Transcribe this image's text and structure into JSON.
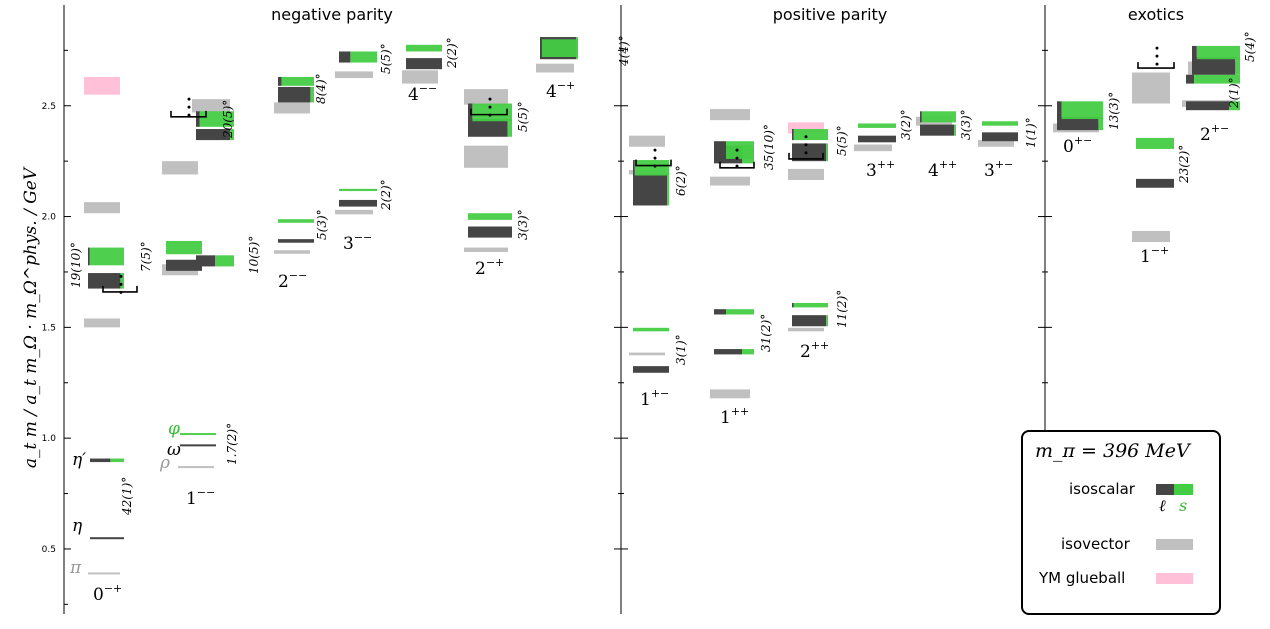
{
  "legend_title": "m_π = 396 MeV",
  "colors": {
    "light": "#454545",
    "strange": "#44cc44",
    "isovector": "#c0c0c0",
    "glueball": "#ffc0d8"
  },
  "legend": {
    "isoscalar": "isoscalar",
    "isovector": "isovector",
    "glueball": "YM glueball",
    "light_sym": "ℓ",
    "strange_sym": "s"
  },
  "chart_data": {
    "type": "spectrum",
    "ylabel": "a_t m / a_t m_Ω · m_Ω^phys. / GeV",
    "ylim": [
      0.22,
      2.88
    ],
    "yticks": [
      0.5,
      1.0,
      1.5,
      2.0,
      2.5
    ],
    "sections": [
      "negative parity",
      "positive parity",
      "exotics"
    ],
    "jpc_labels": [
      {
        "base": "0",
        "sup": "−+"
      },
      {
        "base": "1",
        "sup": "−−"
      },
      {
        "base": "2",
        "sup": "−−"
      },
      {
        "base": "3",
        "sup": "−−"
      },
      {
        "base": "4",
        "sup": "−−"
      },
      {
        "base": "2",
        "sup": "−+"
      },
      {
        "base": "4",
        "sup": "−+"
      },
      {
        "base": "1",
        "sup": "+−"
      },
      {
        "base": "1",
        "sup": "++"
      },
      {
        "base": "2",
        "sup": "++"
      },
      {
        "base": "3",
        "sup": "++"
      },
      {
        "base": "4",
        "sup": "++"
      },
      {
        "base": "3",
        "sup": "+−"
      },
      {
        "base": "0",
        "sup": "+−"
      },
      {
        "base": "1",
        "sup": "−+"
      },
      {
        "base": "2",
        "sup": "+−"
      }
    ],
    "angles": [
      "42(1)°",
      "19(10)°",
      "7(5)°",
      "10(5)°",
      "1.7(2)°",
      "20(5)°",
      "5(3)°",
      "8(4)°",
      "2(2)°",
      "5(5)°",
      "2(2)°",
      "3(3)°",
      "5(5)°",
      "4(4)°",
      "3(1)°",
      "6(2)°",
      "31(2)°",
      "35(10)°",
      "11(2)°",
      "5(5)°",
      "3(2)°",
      "3(3)°",
      "1(1)°",
      "13(3)°",
      "23(2)°",
      "2(1)°",
      "5(4)°"
    ],
    "meson_labels": [
      "π",
      "η",
      "η′",
      "ρ",
      "ω",
      "φ"
    ],
    "isoscalar": [
      {
        "jpc": "0-+",
        "mass": 0.55,
        "err": 0.003,
        "s": 0.0
      },
      {
        "jpc": "0-+",
        "mass": 0.9,
        "err": 0.008,
        "s": 0.4
      },
      {
        "jpc": "0-+",
        "mass": 1.71,
        "err": 0.035,
        "s": 0.1
      },
      {
        "jpc": "0-+",
        "mass": 1.82,
        "err": 0.04,
        "s": 0.95
      },
      {
        "jpc": "1--",
        "mass": 0.97,
        "err": 0.002,
        "s": 0.0
      },
      {
        "jpc": "1--",
        "mass": 1.02,
        "err": 0.003,
        "s": 1.0
      },
      {
        "jpc": "1--",
        "mass": 1.78,
        "err": 0.025,
        "s": 0.0
      },
      {
        "jpc": "1--",
        "mass": 1.86,
        "err": 0.03,
        "s": 1.0
      },
      {
        "jpc": "1--",
        "mass": 1.8,
        "err": 0.025,
        "s": 0.5
      },
      {
        "jpc": "1--",
        "mass": 2.37,
        "err": 0.025,
        "s": 0.1
      },
      {
        "jpc": "1--",
        "mass": 2.44,
        "err": 0.035,
        "s": 0.9
      },
      {
        "jpc": "2--",
        "mass": 1.89,
        "err": 0.008,
        "s": 0.0
      },
      {
        "jpc": "2--",
        "mass": 1.98,
        "err": 0.008,
        "s": 1.0
      },
      {
        "jpc": "3--",
        "mass": 2.06,
        "err": 0.015,
        "s": 0.0
      },
      {
        "jpc": "3--",
        "mass": 2.12,
        "err": 0.005,
        "s": 1.0
      },
      {
        "jpc": "2--",
        "mass": 2.55,
        "err": 0.035,
        "s": 0.1
      },
      {
        "jpc": "2--",
        "mass": 2.61,
        "err": 0.02,
        "s": 0.9
      },
      {
        "jpc": "3--",
        "mass": 2.72,
        "err": 0.025,
        "s": 0.7
      },
      {
        "jpc": "4--",
        "mass": 2.69,
        "err": 0.025,
        "s": 0.0
      },
      {
        "jpc": "4--",
        "mass": 2.76,
        "err": 0.015,
        "s": 1.0
      },
      {
        "jpc": "2-+",
        "mass": 1.93,
        "err": 0.025,
        "s": 0.0
      },
      {
        "jpc": "2-+",
        "mass": 2.0,
        "err": 0.015,
        "s": 1.0
      },
      {
        "jpc": "2-+",
        "mass": 2.4,
        "err": 0.04,
        "s": 0.1
      },
      {
        "jpc": "2-+",
        "mass": 2.47,
        "err": 0.04,
        "s": 0.9
      },
      {
        "jpc": "4-+",
        "mass": 2.76,
        "err": 0.05,
        "s": 0.05
      },
      {
        "jpc": "4-+",
        "mass": 2.76,
        "err": 0.04,
        "s": 0.95
      },
      {
        "jpc": "1+-",
        "mass": 1.31,
        "err": 0.015,
        "s": 0.0
      },
      {
        "jpc": "1+-",
        "mass": 1.49,
        "err": 0.008,
        "s": 1.0
      },
      {
        "jpc": "1+-",
        "mass": 2.12,
        "err": 0.07,
        "s": 0.05
      },
      {
        "jpc": "1+-",
        "mass": 2.22,
        "err": 0.035,
        "s": 0.95
      },
      {
        "jpc": "1++",
        "mass": 1.39,
        "err": 0.012,
        "s": 0.3
      },
      {
        "jpc": "1++",
        "mass": 1.57,
        "err": 0.012,
        "s": 0.7
      },
      {
        "jpc": "1++",
        "mass": 2.28,
        "err": 0.04,
        "s": 0.3
      },
      {
        "jpc": "1++",
        "mass": 2.3,
        "err": 0.04,
        "s": 0.7
      },
      {
        "jpc": "2++",
        "mass": 1.53,
        "err": 0.025,
        "s": 0.05
      },
      {
        "jpc": "2++",
        "mass": 1.6,
        "err": 0.01,
        "s": 0.95
      },
      {
        "jpc": "2++",
        "mass": 2.29,
        "err": 0.04,
        "s": 0.05
      },
      {
        "jpc": "2++",
        "mass": 2.37,
        "err": 0.025,
        "s": 0.95
      },
      {
        "jpc": "3++",
        "mass": 2.35,
        "err": 0.015,
        "s": 0.0
      },
      {
        "jpc": "3++",
        "mass": 2.41,
        "err": 0.01,
        "s": 1.0
      },
      {
        "jpc": "4++",
        "mass": 2.39,
        "err": 0.025,
        "s": 0.05
      },
      {
        "jpc": "4++",
        "mass": 2.45,
        "err": 0.025,
        "s": 0.95
      },
      {
        "jpc": "3+-",
        "mass": 2.36,
        "err": 0.02,
        "s": 0.0
      },
      {
        "jpc": "3+-",
        "mass": 2.42,
        "err": 0.01,
        "s": 1.0
      },
      {
        "jpc": "0+-",
        "mass": 2.42,
        "err": 0.03,
        "s": 0.1
      },
      {
        "jpc": "0+-",
        "mass": 2.48,
        "err": 0.04,
        "s": 0.9
      },
      {
        "jpc": "1-+",
        "mass": 2.15,
        "err": 0.02,
        "s": 0.0
      },
      {
        "jpc": "1-+",
        "mass": 2.33,
        "err": 0.025,
        "s": 1.0
      },
      {
        "jpc": "2+-",
        "mass": 2.5,
        "err": 0.02,
        "s": 0.2
      },
      {
        "jpc": "2+-",
        "mass": 2.62,
        "err": 0.02,
        "s": 0.85
      },
      {
        "jpc": "2+-",
        "mass": 2.68,
        "err": 0.04,
        "s": 0.1
      },
      {
        "jpc": "2+-",
        "mass": 2.74,
        "err": 0.03,
        "s": 0.9
      }
    ],
    "isovector": [
      {
        "jpc": "0-+",
        "mass": 0.39
      },
      {
        "jpc": "0-+",
        "mass": 1.52,
        "err": 0.02
      },
      {
        "jpc": "0-+",
        "mass": 2.04,
        "err": 0.025
      },
      {
        "jpc": "1--",
        "mass": 0.87
      },
      {
        "jpc": "1--",
        "mass": 1.75,
        "err": 0.015
      },
      {
        "jpc": "1--",
        "mass": 2.22,
        "err": 0.03
      },
      {
        "jpc": "1--",
        "mass": 2.5,
        "err": 0.03
      },
      {
        "jpc": "1--",
        "mass": 1.77,
        "err": 0.015
      },
      {
        "jpc": "2--",
        "mass": 1.84,
        "err": 0.008
      },
      {
        "jpc": "3--",
        "mass": 2.02,
        "err": 0.01
      },
      {
        "jpc": "2--",
        "mass": 2.49,
        "err": 0.025
      },
      {
        "jpc": "3--",
        "mass": 2.64,
        "err": 0.015
      },
      {
        "jpc": "4--",
        "mass": 2.63,
        "err": 0.03
      },
      {
        "jpc": "2-+",
        "mass": 1.85,
        "err": 0.01
      },
      {
        "jpc": "2-+",
        "mass": 2.27,
        "err": 0.05
      },
      {
        "jpc": "2-+",
        "mass": 2.54,
        "err": 0.035
      },
      {
        "jpc": "4-+",
        "mass": 2.67,
        "err": 0.02
      },
      {
        "jpc": "1+-",
        "mass": 1.38,
        "err": 0.006
      },
      {
        "jpc": "1+-",
        "mass": 2.2,
        "err": 0.01
      },
      {
        "jpc": "1+-",
        "mass": 2.34,
        "err": 0.025
      },
      {
        "jpc": "1++",
        "mass": 1.2,
        "err": 0.02
      },
      {
        "jpc": "1++",
        "mass": 2.16,
        "err": 0.02
      },
      {
        "jpc": "1++",
        "mass": 2.46,
        "err": 0.025
      },
      {
        "jpc": "2++",
        "mass": 1.49,
        "err": 0.008
      },
      {
        "jpc": "2++",
        "mass": 2.19,
        "err": 0.025
      },
      {
        "jpc": "3++",
        "mass": 2.31,
        "err": 0.015
      },
      {
        "jpc": "4++",
        "mass": 2.43,
        "err": 0.02
      },
      {
        "jpc": "3+-",
        "mass": 2.33,
        "err": 0.015
      },
      {
        "jpc": "0+-",
        "mass": 2.4,
        "err": 0.02
      },
      {
        "jpc": "1-+",
        "mass": 1.91,
        "err": 0.025
      },
      {
        "jpc": "1-+",
        "mass": 2.58,
        "err": 0.07
      },
      {
        "jpc": "2+-",
        "mass": 2.51,
        "err": 0.015
      },
      {
        "jpc": "2+-",
        "mass": 2.67,
        "err": 0.03
      }
    ],
    "glueball": [
      {
        "jpc": "0-+",
        "mass": 2.59,
        "err": 0.04
      },
      {
        "jpc": "2++",
        "mass": 2.4,
        "err": 0.025
      }
    ]
  }
}
